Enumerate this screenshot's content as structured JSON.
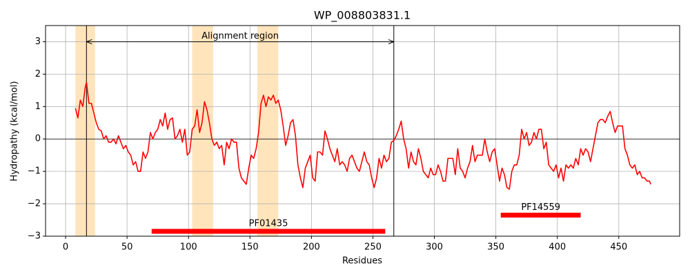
{
  "chart_data": {
    "type": "line",
    "title": "WP_008803831.1",
    "xlabel": "Residues",
    "ylabel": "Hydropathy (kcal/mol)",
    "x": [
      8,
      10,
      12,
      14,
      16,
      17,
      19,
      21,
      23,
      25,
      27,
      29,
      31,
      33,
      35,
      37,
      39,
      41,
      43,
      45,
      47,
      49,
      51,
      53,
      55,
      57,
      59,
      61,
      63,
      65,
      67,
      69,
      71,
      73,
      75,
      77,
      79,
      81,
      83,
      85,
      87,
      89,
      91,
      93,
      95,
      97,
      99,
      101,
      103,
      105,
      107,
      109,
      111,
      113,
      115,
      117,
      119,
      121,
      123,
      125,
      127,
      129,
      131,
      133,
      135,
      137,
      139,
      141,
      143,
      145,
      147,
      149,
      151,
      153,
      155,
      157,
      159,
      161,
      163,
      165,
      167,
      169,
      171,
      173,
      175,
      177,
      179,
      181,
      183,
      185,
      187,
      189,
      191,
      193,
      195,
      197,
      199,
      201,
      203,
      205,
      207,
      209,
      211,
      213,
      215,
      217,
      219,
      221,
      223,
      225,
      227,
      229,
      231,
      233,
      235,
      237,
      239,
      241,
      243,
      245,
      247,
      249,
      251,
      253,
      255,
      257,
      259,
      261,
      263,
      265,
      267,
      269,
      271,
      273,
      275,
      277,
      279,
      281,
      283,
      285,
      287,
      289,
      291,
      293,
      295,
      297,
      299,
      301,
      303,
      305,
      307,
      309,
      311,
      313,
      315,
      317,
      319,
      321,
      323,
      325,
      327,
      329,
      331,
      333,
      335,
      337,
      339,
      341,
      343,
      345,
      347,
      349,
      351,
      353,
      355,
      357,
      359,
      361,
      363,
      365,
      367,
      369,
      371,
      373,
      375,
      377,
      379,
      381,
      383,
      385,
      387,
      389,
      391,
      393,
      395,
      397,
      399,
      401,
      403,
      405,
      407,
      409,
      411,
      413,
      415,
      417,
      419,
      421,
      423,
      425,
      427,
      429,
      431,
      433,
      435,
      437,
      439,
      441,
      443,
      445,
      447,
      449,
      451,
      453,
      455,
      457,
      459,
      461,
      463,
      465,
      467,
      469,
      471,
      473,
      475,
      476
    ],
    "values": [
      0.95,
      0.65,
      1.2,
      1.0,
      1.6,
      1.75,
      1.1,
      1.1,
      0.8,
      0.5,
      0.3,
      0.25,
      0.0,
      0.1,
      -0.1,
      -0.1,
      0.0,
      -0.15,
      0.1,
      -0.1,
      -0.3,
      -0.2,
      -0.4,
      -0.5,
      -0.8,
      -0.7,
      -1.0,
      -1.0,
      -0.4,
      -0.6,
      -0.4,
      0.2,
      0.0,
      0.2,
      0.3,
      0.6,
      0.4,
      0.8,
      0.3,
      0.6,
      0.65,
      0.0,
      0.1,
      0.3,
      -0.1,
      0.3,
      -0.5,
      -0.4,
      0.3,
      0.4,
      0.9,
      0.2,
      0.5,
      1.15,
      0.9,
      0.5,
      0.0,
      -0.2,
      -0.1,
      -0.3,
      -0.2,
      -0.8,
      -0.1,
      -0.3,
      0.0,
      -0.1,
      -0.1,
      -0.9,
      -1.2,
      -1.3,
      -1.4,
      -0.9,
      -0.5,
      -0.6,
      -0.3,
      0.2,
      1.1,
      1.35,
      1.0,
      1.3,
      1.2,
      1.35,
      1.1,
      1.2,
      0.9,
      0.4,
      -0.2,
      0.1,
      0.5,
      0.6,
      0.1,
      -0.8,
      -1.2,
      -1.5,
      -0.9,
      -0.7,
      -0.5,
      -1.2,
      -1.3,
      -0.4,
      -0.4,
      -0.5,
      0.25,
      0.0,
      -0.3,
      -0.5,
      -0.7,
      -0.3,
      -0.8,
      -0.7,
      -0.8,
      -1.0,
      -0.6,
      -0.5,
      -0.7,
      -0.9,
      -1.0,
      -0.7,
      -0.4,
      -0.7,
      -0.8,
      -1.2,
      -1.5,
      -1.2,
      -0.6,
      -0.9,
      -0.5,
      -0.7,
      -0.6,
      -0.1,
      -0.05,
      0.1,
      0.3,
      0.55,
      0.0,
      -0.3,
      -0.9,
      -0.4,
      -0.7,
      -0.8,
      -0.3,
      -0.6,
      -1.0,
      -1.1,
      -1.2,
      -0.9,
      -1.1,
      -1.1,
      -0.8,
      -1.0,
      -1.3,
      -1.3,
      -0.6,
      -0.6,
      -0.6,
      -1.1,
      -0.3,
      -0.9,
      -1.0,
      -1.2,
      -0.9,
      -0.7,
      -0.2,
      -0.7,
      -0.5,
      -0.5,
      -0.5,
      0.0,
      -0.4,
      -0.7,
      -0.4,
      -0.3,
      -0.8,
      -1.3,
      -0.9,
      -1.1,
      -1.5,
      -1.55,
      -1.0,
      -0.8,
      -0.8,
      -0.5,
      0.3,
      0.0,
      0.2,
      -0.2,
      -0.1,
      0.2,
      0.0,
      0.3,
      0.3,
      -0.3,
      -0.1,
      -0.8,
      -0.9,
      -1.0,
      -0.8,
      -1.2,
      -0.9,
      -1.3,
      -0.8,
      -0.9,
      -0.8,
      -0.9,
      -0.6,
      -0.8,
      -0.3,
      -0.5,
      -0.3,
      -0.4,
      -0.7,
      -0.3,
      0.1,
      0.5,
      0.6,
      0.6,
      0.5,
      0.7,
      0.85,
      0.5,
      0.2,
      0.4,
      0.4,
      0.4,
      -0.3,
      -0.5,
      -0.8,
      -0.9,
      -0.8,
      -1.1,
      -1.0,
      -1.2,
      -1.2,
      -1.3,
      -1.3,
      -1.4
    ],
    "color": "#ff0000",
    "xlim": [
      -16.3,
      499.5
    ],
    "ylim": [
      -3,
      3.5
    ],
    "xticks": [
      0,
      50,
      100,
      150,
      200,
      250,
      300,
      350,
      400,
      450
    ],
    "yticks": [
      {
        "value": -3,
        "label": "−3"
      },
      {
        "value": -2,
        "label": "−2"
      },
      {
        "value": -1,
        "label": "−1"
      },
      0,
      1,
      2,
      3
    ],
    "grid": true,
    "highlight_regions": [
      [
        8,
        24
      ],
      [
        103,
        120
      ],
      [
        156,
        173
      ]
    ],
    "highlight_color": "#ffe4bc",
    "vlines": [
      17,
      267
    ],
    "annotation": {
      "text": "Alignment region",
      "x_start": 17,
      "x_end": 267,
      "y": 3
    },
    "domains": [
      {
        "name": "PF01435",
        "start": 70,
        "end": 260,
        "y": -2.85
      },
      {
        "name": "PF14559",
        "start": 354,
        "end": 419,
        "y": -2.35
      }
    ],
    "domain_color": "#ff0000"
  }
}
